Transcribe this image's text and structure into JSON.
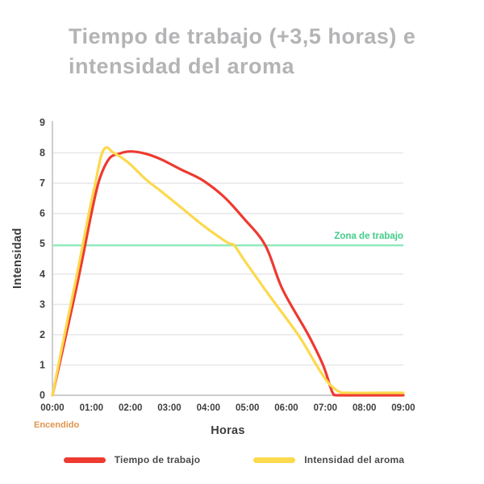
{
  "header": {
    "title_line1": "Tiempo de trabajo (+3,5 horas) e",
    "title_line2": "intensidad del aroma"
  },
  "colors": {
    "title": "#b4b4b6",
    "axis_line": "#bdbdbd",
    "gridline": "#e7e7e7",
    "tick_text": "#3f3f3f",
    "zona_line": "#8fe9bc",
    "zona_text": "#41cd89",
    "encendido_text": "#e2944c",
    "red_series": "#ee3a30",
    "yellow_series": "#fcd94d"
  },
  "chart_data": {
    "type": "line",
    "title": "Tiempo de trabajo (+3,5 horas) e intensidad del aroma",
    "xlabel": "Horas",
    "ylabel": "Intensidad",
    "xlim": [
      0,
      9
    ],
    "ylim": [
      0,
      9
    ],
    "x_tick_hours": [
      0,
      1,
      2,
      3,
      4,
      5,
      6,
      7,
      8,
      9
    ],
    "x_tick_labels": [
      "00:00",
      "01:00",
      "02:00",
      "03:00",
      "04:00",
      "05:00",
      "06:00",
      "07:00",
      "08:00",
      "09:00"
    ],
    "y_tick_values": [
      0,
      1,
      2,
      3,
      4,
      5,
      6,
      7,
      8,
      9
    ],
    "y_grid_values": [
      1,
      2,
      3,
      4,
      6,
      7,
      8
    ],
    "grid": true,
    "legend_position": "bottom",
    "annotations": {
      "zona": {
        "label": "Zona de trabajo",
        "value": 4.95,
        "line_color": "#8fe9bc",
        "text_color": "#41cd89"
      },
      "encendido": {
        "label": "Encendido",
        "text_color": "#e2944c"
      }
    },
    "series": [
      {
        "name": "Tiempo de trabajo",
        "color": "#ee3a30",
        "points": [
          [
            0,
            0
          ],
          [
            0.35,
            2.0
          ],
          [
            0.69,
            4.0
          ],
          [
            1.0,
            6.0
          ],
          [
            1.2,
            7.1
          ],
          [
            1.45,
            7.8
          ],
          [
            1.7,
            7.97
          ],
          [
            2.0,
            8.05
          ],
          [
            2.4,
            7.97
          ],
          [
            2.8,
            7.78
          ],
          [
            3.3,
            7.45
          ],
          [
            3.85,
            7.1
          ],
          [
            4.4,
            6.55
          ],
          [
            4.9,
            5.85
          ],
          [
            5.46,
            4.95
          ],
          [
            5.9,
            3.5
          ],
          [
            6.56,
            2.0
          ],
          [
            6.94,
            1.0
          ],
          [
            7.18,
            0.1
          ],
          [
            7.3,
            0
          ],
          [
            8.0,
            0
          ],
          [
            9.0,
            0
          ]
        ]
      },
      {
        "name": "Intensidad del aroma",
        "color": "#fcd94d",
        "points": [
          [
            0,
            0
          ],
          [
            0.31,
            2.0
          ],
          [
            0.63,
            4.0
          ],
          [
            0.95,
            6.1
          ],
          [
            1.1,
            7.0
          ],
          [
            1.25,
            7.9
          ],
          [
            1.38,
            8.18
          ],
          [
            1.55,
            8.02
          ],
          [
            1.77,
            7.85
          ],
          [
            2.0,
            7.62
          ],
          [
            2.4,
            7.12
          ],
          [
            2.8,
            6.72
          ],
          [
            3.3,
            6.2
          ],
          [
            3.85,
            5.62
          ],
          [
            4.48,
            5.05
          ],
          [
            4.66,
            4.95
          ],
          [
            4.9,
            4.5
          ],
          [
            5.52,
            3.37
          ],
          [
            6.3,
            2.0
          ],
          [
            6.77,
            1.0
          ],
          [
            7.05,
            0.45
          ],
          [
            7.35,
            0.12
          ],
          [
            7.6,
            0.08
          ],
          [
            8.3,
            0.08
          ],
          [
            9.0,
            0.08
          ]
        ]
      }
    ]
  },
  "legend": {
    "items": [
      {
        "label": "Tiempo de trabajo",
        "color": "#ee3a30"
      },
      {
        "label": "Intensidad del aroma",
        "color": "#fcd94d"
      }
    ]
  }
}
